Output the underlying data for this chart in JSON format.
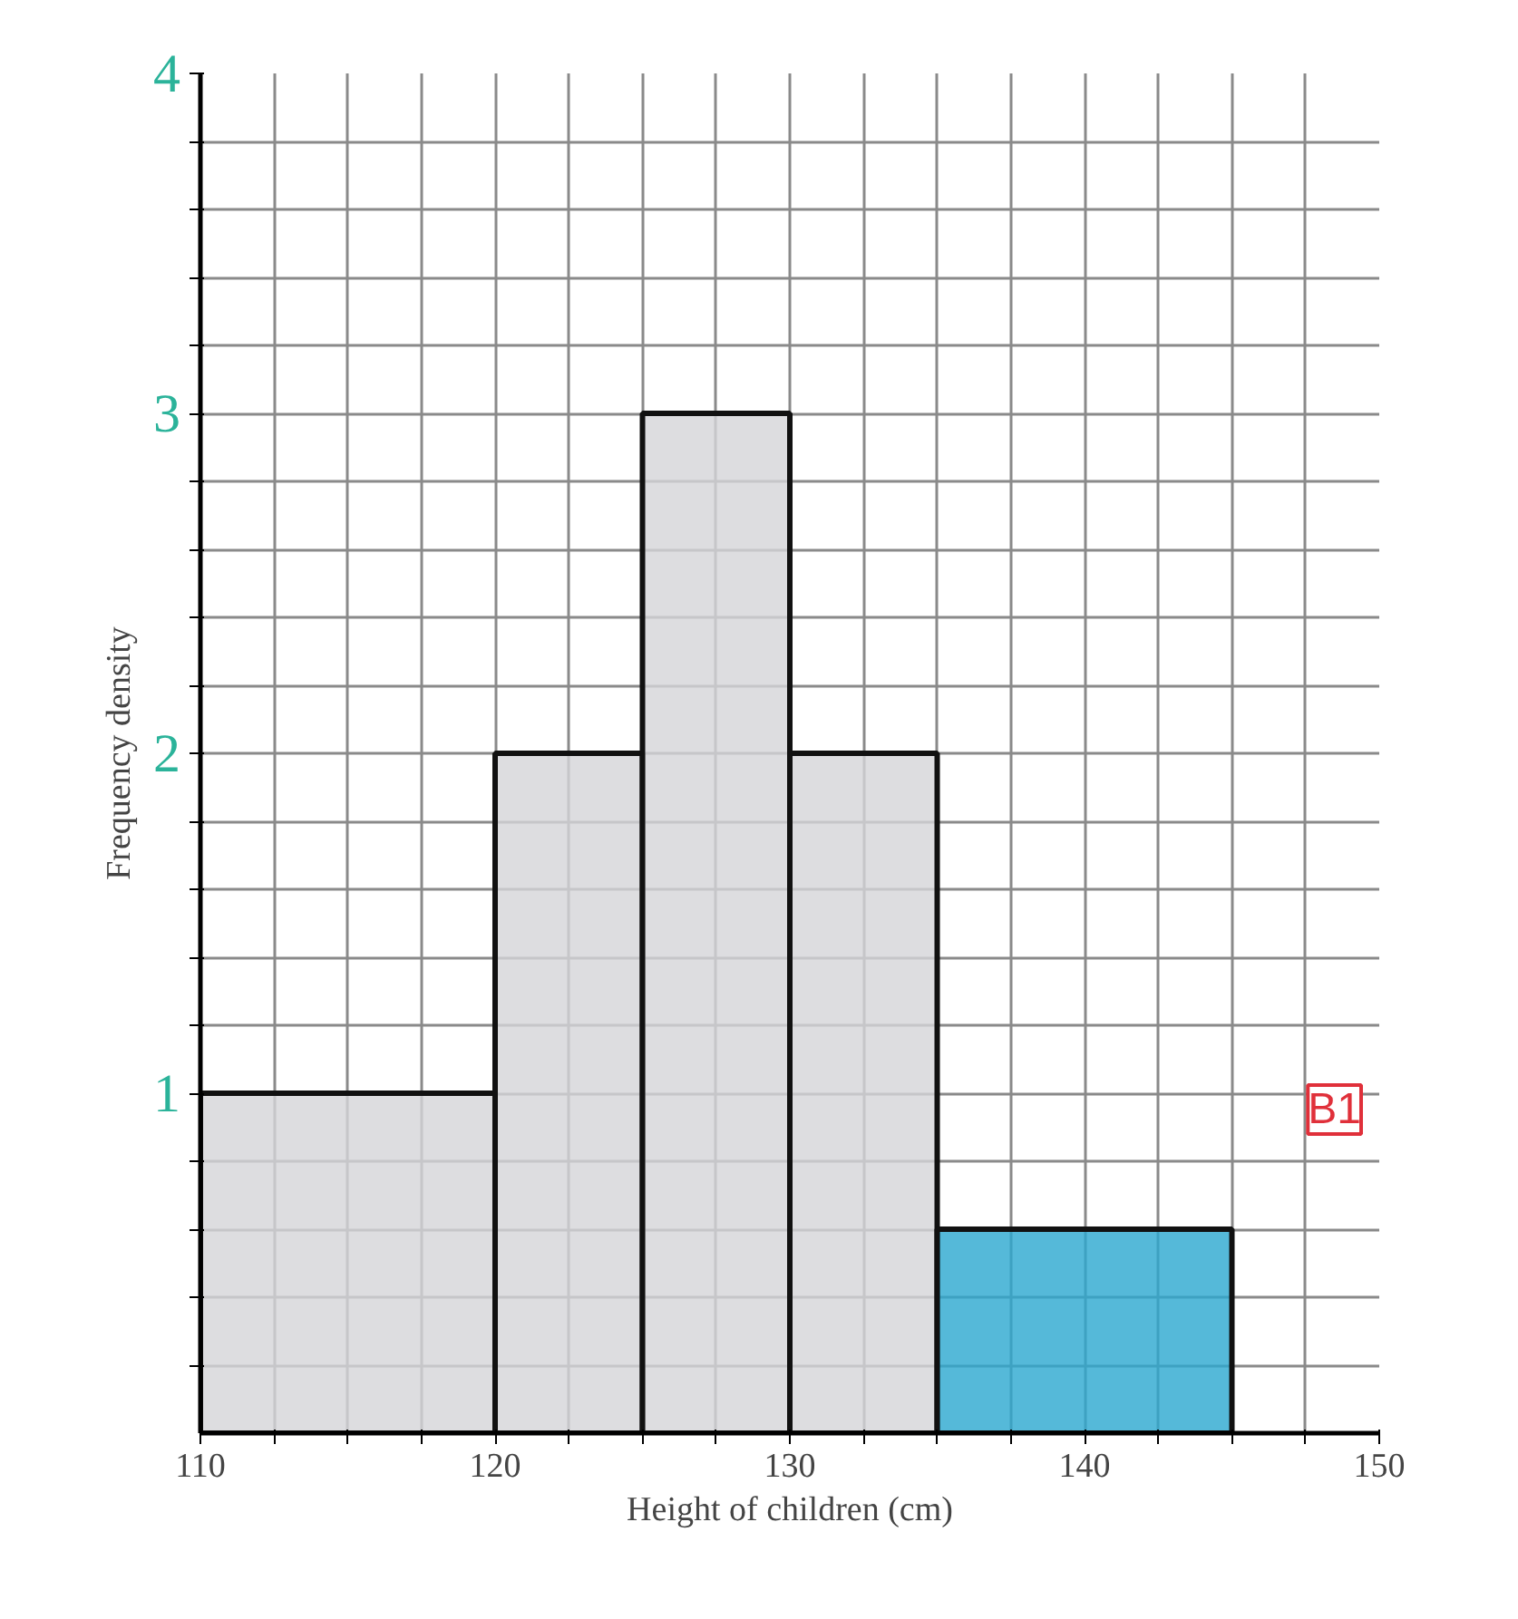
{
  "chart_data": {
    "type": "histogram",
    "xlabel": "Height of children (cm)",
    "ylabel": "Frequency density",
    "bins": [
      110,
      120,
      125,
      130,
      135,
      145
    ],
    "values": [
      1,
      2,
      3,
      2,
      0.6
    ],
    "colors": [
      "#d4d4d8",
      "#d4d4d8",
      "#d4d4d8",
      "#d4d4d8",
      "#2aa8d0"
    ],
    "xlim": [
      110,
      150
    ],
    "ylim": [
      0,
      4
    ],
    "xticks": [
      110,
      {
        "value": 112.5,
        "label": null
      },
      {
        "value": 115,
        "label": null
      },
      {
        "value": 117.5,
        "label": null
      },
      120,
      {
        "value": 122.5,
        "label": null
      },
      {
        "value": 125,
        "label": null
      },
      {
        "value": 127.5,
        "label": null
      },
      130,
      {
        "value": 132.5,
        "label": null
      },
      {
        "value": 135,
        "label": null
      },
      {
        "value": 137.5,
        "label": null
      },
      140,
      {
        "value": 142.5,
        "label": null
      },
      {
        "value": 145,
        "label": null
      },
      {
        "value": 147.5,
        "label": null
      },
      150
    ],
    "yticks": [
      {
        "value": 0.2,
        "label": null
      },
      {
        "value": 0.4,
        "label": null
      },
      {
        "value": 0.6,
        "label": null
      },
      {
        "value": 0.8,
        "label": null
      },
      1,
      {
        "value": 1.2,
        "label": null
      },
      {
        "value": 1.4,
        "label": null
      },
      {
        "value": 1.6,
        "label": null
      },
      {
        "value": 1.8,
        "label": null
      },
      2,
      {
        "value": 2.2,
        "label": null
      },
      {
        "value": 2.4,
        "label": null
      },
      {
        "value": 2.6,
        "label": null
      },
      {
        "value": 2.8,
        "label": null
      },
      3,
      {
        "value": 3.2,
        "label": null
      },
      {
        "value": 3.4,
        "label": null
      },
      {
        "value": 3.6,
        "label": null
      },
      {
        "value": 3.8,
        "label": null
      },
      4
    ],
    "grid": true,
    "annotations": [
      "B1"
    ]
  }
}
